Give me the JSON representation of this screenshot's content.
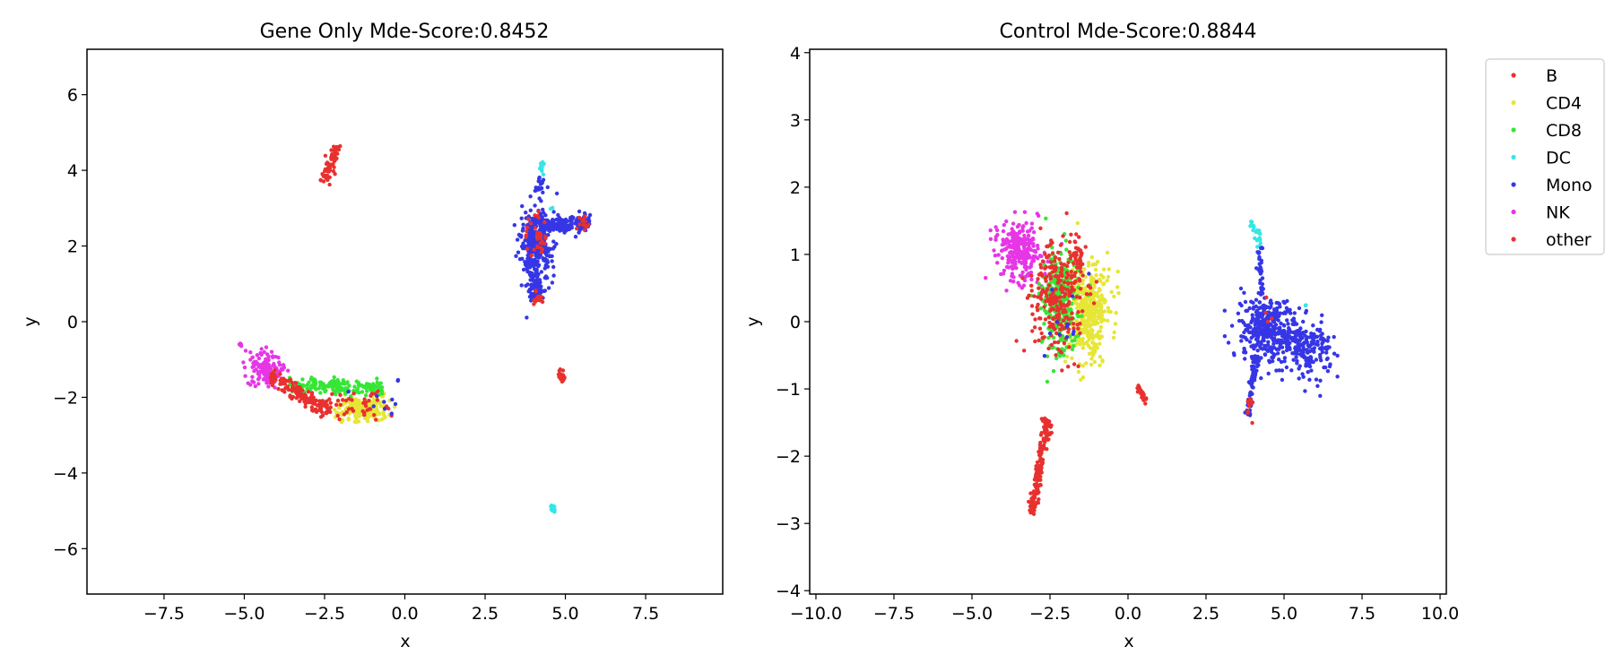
{
  "chart_data": [
    {
      "type": "scatter",
      "title": "Gene Only Mde-Score:0.8452",
      "xlabel": "x",
      "ylabel": "y",
      "xlim": [
        -9.9,
        9.9
      ],
      "ylim": [
        -7.2,
        7.2
      ],
      "xticks": [
        -7.5,
        -5.0,
        -2.5,
        0.0,
        2.5,
        5.0,
        7.5
      ],
      "xtick_labels": [
        "−7.5",
        "−5.0",
        "−2.5",
        "0.0",
        "2.5",
        "5.0",
        "7.5"
      ],
      "yticks": [
        -6,
        -4,
        -2,
        0,
        2,
        4,
        6
      ],
      "ytick_labels": [
        "−6",
        "−4",
        "−2",
        "0",
        "2",
        "4",
        "6"
      ],
      "grid": false,
      "clusters": [
        {
          "series": "other",
          "kind": "line",
          "x0": -2.55,
          "y0": 3.7,
          "x1": -2.05,
          "y1": 4.7,
          "w": 0.08,
          "n": 60
        },
        {
          "series": "DC",
          "kind": "blob",
          "cx": 4.3,
          "cy": 4.05,
          "sx": 0.05,
          "sy": 0.1,
          "n": 12
        },
        {
          "series": "Mono",
          "kind": "line",
          "x0": 4.25,
          "y0": 3.85,
          "x1": 4.15,
          "y1": 3.4,
          "w": 0.05,
          "n": 15
        },
        {
          "series": "Mono",
          "kind": "blob",
          "cx": 4.1,
          "cy": 2.1,
          "sx": 0.22,
          "sy": 0.55,
          "n": 320
        },
        {
          "series": "Mono",
          "kind": "line",
          "x0": 4.2,
          "y0": 2.55,
          "x1": 5.8,
          "y1": 2.6,
          "w": 0.12,
          "n": 170
        },
        {
          "series": "Mono",
          "kind": "line",
          "x0": 4.0,
          "y0": 1.3,
          "x1": 4.1,
          "y1": 0.55,
          "w": 0.1,
          "n": 60
        },
        {
          "series": "other",
          "kind": "blob",
          "cx": 4.15,
          "cy": 0.6,
          "sx": 0.1,
          "sy": 0.07,
          "n": 18
        },
        {
          "series": "other",
          "kind": "blob",
          "cx": 4.1,
          "cy": 2.3,
          "sx": 0.25,
          "sy": 0.3,
          "n": 35
        },
        {
          "series": "other",
          "kind": "blob",
          "cx": 5.5,
          "cy": 2.6,
          "sx": 0.12,
          "sy": 0.1,
          "n": 14
        },
        {
          "series": "DC",
          "kind": "blob",
          "cx": 4.6,
          "cy": 3.0,
          "sx": 0.03,
          "sy": 0.03,
          "n": 2
        },
        {
          "series": "other",
          "kind": "line",
          "x0": 4.75,
          "y0": -1.3,
          "x1": 4.95,
          "y1": -1.55,
          "w": 0.05,
          "n": 22
        },
        {
          "series": "DC",
          "kind": "line",
          "x0": 4.6,
          "y0": -4.85,
          "x1": 4.65,
          "y1": -5.05,
          "w": 0.03,
          "n": 12
        },
        {
          "series": "NK",
          "kind": "blob",
          "cx": -4.3,
          "cy": -1.3,
          "sx": 0.25,
          "sy": 0.2,
          "n": 140
        },
        {
          "series": "NK",
          "kind": "line",
          "x0": -5.2,
          "y0": -0.55,
          "x1": -4.6,
          "y1": -1.1,
          "w": 0.05,
          "n": 12
        },
        {
          "series": "CD4",
          "kind": "blob",
          "cx": -1.3,
          "cy": -2.3,
          "sx": 0.4,
          "sy": 0.17,
          "n": 220
        },
        {
          "series": "CD8",
          "kind": "line",
          "x0": -3.6,
          "y0": -1.65,
          "x1": -0.7,
          "y1": -1.75,
          "w": 0.12,
          "n": 170
        },
        {
          "series": "other",
          "kind": "line",
          "x0": -4.2,
          "y0": -1.4,
          "x1": -2.4,
          "y1": -2.4,
          "w": 0.1,
          "n": 150
        },
        {
          "series": "other",
          "kind": "blob",
          "cx": -1.6,
          "cy": -2.2,
          "sx": 0.5,
          "sy": 0.25,
          "n": 45
        },
        {
          "series": "Mono",
          "kind": "blob",
          "cx": -1.0,
          "cy": -2.0,
          "sx": 0.5,
          "sy": 0.3,
          "n": 8
        },
        {
          "series": "Mono",
          "kind": "blob",
          "cx": -0.2,
          "cy": -1.55,
          "sx": 0.05,
          "sy": 0.03,
          "n": 3
        }
      ]
    },
    {
      "type": "scatter",
      "title": "Control Mde-Score:0.8844",
      "xlabel": "x",
      "ylabel": "y",
      "xlim": [
        -10.2,
        10.2
      ],
      "ylim": [
        -4.05,
        4.05
      ],
      "xticks": [
        -10.0,
        -7.5,
        -5.0,
        -2.5,
        0.0,
        2.5,
        5.0,
        7.5,
        10.0
      ],
      "xtick_labels": [
        "−10.0",
        "−7.5",
        "−5.0",
        "−2.5",
        "0.0",
        "2.5",
        "5.0",
        "7.5",
        "10.0"
      ],
      "yticks": [
        -4,
        -3,
        -2,
        -1,
        0,
        1,
        2,
        3,
        4
      ],
      "ytick_labels": [
        "−4",
        "−3",
        "−2",
        "−1",
        "0",
        "1",
        "2",
        "3",
        "4"
      ],
      "grid": false,
      "legend_location": "outside upper right",
      "clusters": [
        {
          "series": "NK",
          "kind": "blob",
          "cx": -3.5,
          "cy": 1.05,
          "sx": 0.35,
          "sy": 0.22,
          "n": 260
        },
        {
          "series": "CD4",
          "kind": "blob",
          "cx": -1.3,
          "cy": 0.15,
          "sx": 0.35,
          "sy": 0.35,
          "n": 420
        },
        {
          "series": "CD8",
          "kind": "blob",
          "cx": -2.2,
          "cy": 0.3,
          "sx": 0.3,
          "sy": 0.38,
          "n": 300
        },
        {
          "series": "other",
          "kind": "blob",
          "cx": -2.3,
          "cy": 0.35,
          "sx": 0.45,
          "sy": 0.4,
          "n": 250
        },
        {
          "series": "other",
          "kind": "blob",
          "cx": -1.6,
          "cy": 0.95,
          "sx": 0.15,
          "sy": 0.15,
          "n": 40
        },
        {
          "series": "Mono",
          "kind": "blob",
          "cx": -1.9,
          "cy": 0.0,
          "sx": 0.45,
          "sy": 0.35,
          "n": 12
        },
        {
          "series": "other",
          "kind": "line",
          "x0": -2.55,
          "y0": -1.45,
          "x1": -3.1,
          "y1": -2.85,
          "w": 0.07,
          "n": 160
        },
        {
          "series": "other",
          "kind": "line",
          "x0": 0.3,
          "y0": -0.95,
          "x1": 0.6,
          "y1": -1.2,
          "w": 0.04,
          "n": 22
        },
        {
          "series": "DC",
          "kind": "line",
          "x0": 3.95,
          "y0": 1.5,
          "x1": 4.25,
          "y1": 1.15,
          "w": 0.05,
          "n": 22
        },
        {
          "series": "Mono",
          "kind": "line",
          "x0": 4.2,
          "y0": 1.1,
          "x1": 4.3,
          "y1": 0.4,
          "w": 0.05,
          "n": 35
        },
        {
          "series": "Mono",
          "kind": "blob",
          "cx": 4.4,
          "cy": -0.1,
          "sx": 0.38,
          "sy": 0.25,
          "n": 360
        },
        {
          "series": "Mono",
          "kind": "line",
          "x0": 4.1,
          "y0": -0.5,
          "x1": 3.85,
          "y1": -1.4,
          "w": 0.06,
          "n": 70
        },
        {
          "series": "Mono",
          "kind": "blob",
          "cx": 5.8,
          "cy": -0.4,
          "sx": 0.35,
          "sy": 0.2,
          "n": 170
        },
        {
          "series": "Mono",
          "kind": "line",
          "x0": 4.7,
          "y0": -0.2,
          "x1": 5.5,
          "y1": -0.3,
          "w": 0.08,
          "n": 40
        },
        {
          "series": "other",
          "kind": "blob",
          "cx": 3.9,
          "cy": -1.3,
          "sx": 0.06,
          "sy": 0.1,
          "n": 10
        },
        {
          "series": "DC",
          "kind": "blob",
          "cx": 5.7,
          "cy": 0.25,
          "sx": 0.02,
          "sy": 0.02,
          "n": 2
        },
        {
          "series": "other",
          "kind": "blob",
          "cx": 4.5,
          "cy": 0.2,
          "sx": 0.1,
          "sy": 0.1,
          "n": 4
        }
      ]
    }
  ],
  "legend": {
    "entries": [
      {
        "label": "B",
        "color": "#e8312f"
      },
      {
        "label": "CD4",
        "color": "#e6e636"
      },
      {
        "label": "CD8",
        "color": "#36e636"
      },
      {
        "label": "DC",
        "color": "#36e6e6"
      },
      {
        "label": "Mono",
        "color": "#3636e6"
      },
      {
        "label": "NK",
        "color": "#e636e6"
      },
      {
        "label": "other",
        "color": "#e8312f"
      }
    ]
  }
}
